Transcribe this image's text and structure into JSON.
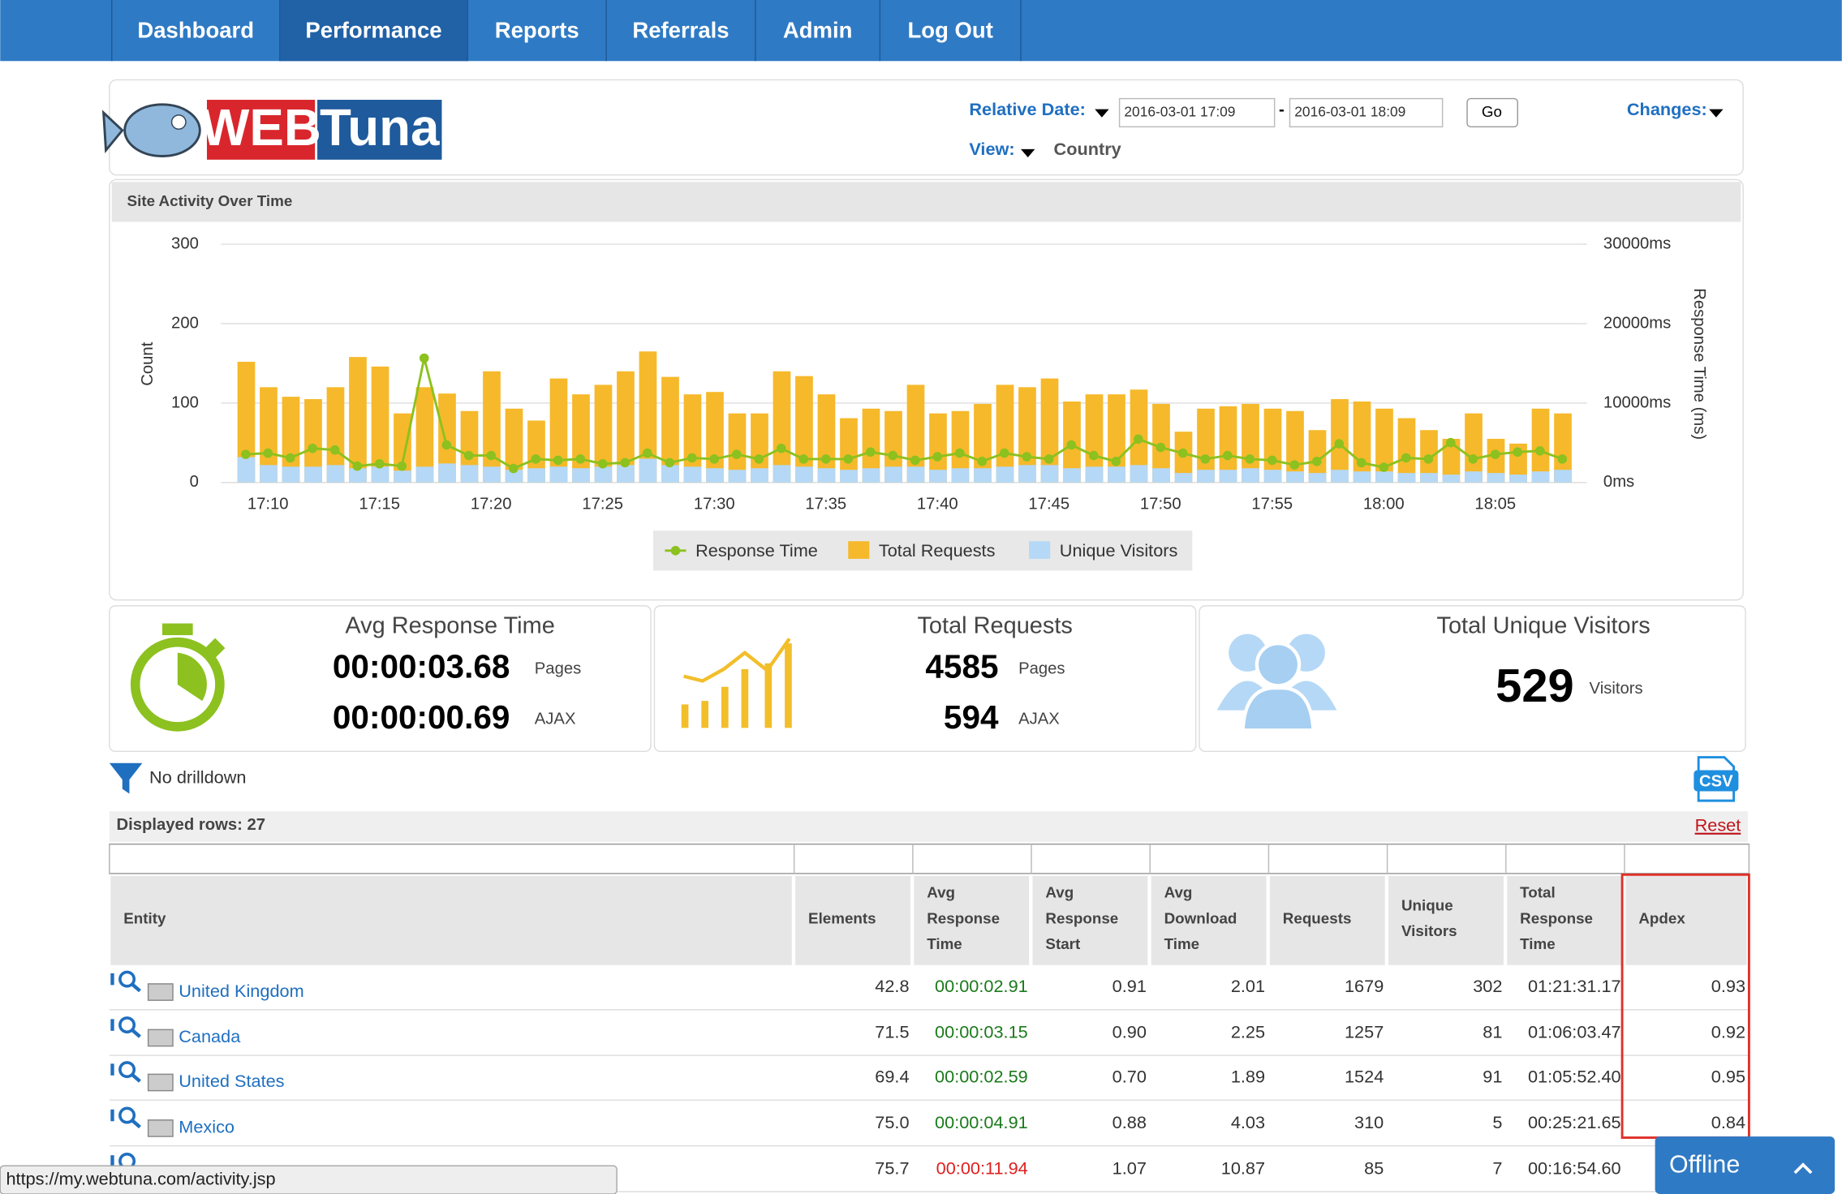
{
  "nav": [
    "Dashboard",
    "Performance",
    "Reports",
    "Referrals",
    "Admin",
    "Log Out"
  ],
  "logo": {
    "web": "WEB",
    "tuna": "Tuna"
  },
  "controls": {
    "relative_date": "Relative Date:",
    "date_from": "2016-03-01 17:09",
    "separator": "-",
    "date_to": "2016-03-01 18:09",
    "go": "Go",
    "changes": "Changes:",
    "view": "View:",
    "view_value": "Country"
  },
  "chart_data": {
    "type": "bar",
    "title": "Site Activity Over Time",
    "y_label": "Count",
    "y2_label": "Response Time (ms)",
    "categories": [
      null,
      "17:10",
      null,
      null,
      null,
      null,
      "17:15",
      null,
      null,
      null,
      null,
      "17:20",
      null,
      null,
      null,
      null,
      "17:25",
      null,
      null,
      null,
      null,
      "17:30",
      null,
      null,
      null,
      null,
      "17:35",
      null,
      null,
      null,
      null,
      "17:40",
      null,
      null,
      null,
      null,
      "17:45",
      null,
      null,
      null,
      null,
      "17:50",
      null,
      null,
      null,
      null,
      "17:55",
      null,
      null,
      null,
      null,
      "18:00",
      null,
      null,
      null,
      null,
      "18:05",
      null,
      null,
      null
    ],
    "series": [
      {
        "name": "Response Time",
        "type": "line",
        "axis": "y2",
        "color": "#8cc11f",
        "values": [
          3550,
          3700,
          3100,
          4300,
          4100,
          2070,
          2360,
          2070,
          15660,
          4730,
          3400,
          3400,
          1770,
          2960,
          2800,
          2960,
          2360,
          2500,
          3700,
          2500,
          3100,
          2960,
          3550,
          2960,
          4300,
          2960,
          2960,
          2960,
          3840,
          3400,
          2800,
          3250,
          3700,
          2660,
          3700,
          3250,
          2960,
          4730,
          3400,
          2660,
          5470,
          4430,
          3700,
          2960,
          3400,
          2960,
          2800,
          2220,
          2660,
          4880,
          2500,
          1920,
          3100,
          2960,
          5020,
          2960,
          3550,
          3840,
          3990,
          2960
        ]
      },
      {
        "name": "Total Requests",
        "type": "bar",
        "color": "#f6b92b",
        "values": [
          152,
          120,
          108,
          105,
          120,
          158,
          146,
          87,
          120,
          112,
          90,
          140,
          93,
          78,
          131,
          111,
          123,
          140,
          165,
          133,
          111,
          114,
          87,
          87,
          140,
          134,
          111,
          81,
          93,
          90,
          123,
          87,
          90,
          99,
          123,
          120,
          131,
          102,
          111,
          111,
          117,
          99,
          64,
          93,
          96,
          99,
          93,
          90,
          66,
          105,
          102,
          93,
          81,
          66,
          55,
          87,
          55,
          49,
          93,
          87
        ]
      },
      {
        "name": "Unique Visitors",
        "type": "bar",
        "color": "#b5d8f6",
        "values": [
          32,
          22,
          20,
          20,
          22,
          18,
          20,
          15,
          20,
          24,
          22,
          20,
          16,
          18,
          20,
          18,
          20,
          22,
          30,
          22,
          20,
          18,
          16,
          18,
          22,
          20,
          18,
          16,
          18,
          20,
          20,
          16,
          18,
          18,
          20,
          22,
          22,
          18,
          20,
          20,
          22,
          18,
          12,
          16,
          16,
          18,
          16,
          14,
          12,
          16,
          14,
          14,
          12,
          12,
          10,
          14,
          12,
          10,
          14,
          16
        ]
      }
    ],
    "ylim": [
      0,
      300
    ],
    "yticks": [
      0,
      100,
      200,
      300
    ],
    "y2lim": [
      0,
      30000
    ],
    "y2ticks": [
      {
        "value": 0,
        "label": "0ms"
      },
      {
        "value": 10000,
        "label": "10000ms"
      },
      {
        "value": 20000,
        "label": "20000ms"
      },
      {
        "value": 30000,
        "label": "30000ms"
      }
    ],
    "grid": true,
    "legend": "bottom"
  },
  "stats": [
    {
      "title": "Avg Response Time",
      "rows": [
        {
          "value": "00:00:03.68",
          "unit": "Pages"
        },
        {
          "value": "00:00:00.69",
          "unit": "AJAX"
        }
      ]
    },
    {
      "title": "Total Requests",
      "rows": [
        {
          "value": "4585",
          "unit": "Pages"
        },
        {
          "value": "594",
          "unit": "AJAX"
        }
      ]
    },
    {
      "title": "Total Unique Visitors",
      "rows": [
        {
          "value": "529",
          "unit": "Visitors"
        }
      ]
    }
  ],
  "drilldown": "No drilldown",
  "table": {
    "displayed_rows": "Displayed rows: 27",
    "reset": "Reset",
    "csv": "CSV",
    "headers": [
      [
        "Entity"
      ],
      [
        "Elements"
      ],
      [
        "Avg",
        "Response",
        "Time"
      ],
      [
        "Avg",
        "Response",
        "Start"
      ],
      [
        "Avg",
        "Download",
        "Time"
      ],
      [
        "Requests"
      ],
      [
        "Unique",
        "Visitors"
      ],
      [
        "Total",
        "Response",
        "Time"
      ],
      [
        "Apdex"
      ]
    ],
    "rows": [
      [
        "United Kingdom",
        "42.8",
        "00:00:02.91",
        "0.91",
        "2.01",
        "1679",
        "302",
        "01:21:31.17",
        "0.93"
      ],
      [
        "Canada",
        "71.5",
        "00:00:03.15",
        "0.90",
        "2.25",
        "1257",
        "81",
        "01:06:03.47",
        "0.92"
      ],
      [
        "United States",
        "69.4",
        "00:00:02.59",
        "0.70",
        "1.89",
        "1524",
        "91",
        "01:05:52.40",
        "0.95"
      ],
      [
        "Mexico",
        "75.0",
        "00:00:04.91",
        "0.88",
        "4.03",
        "310",
        "5",
        "00:25:21.65",
        "0.84"
      ],
      [
        null,
        "75.7",
        "00:00:11.94",
        "1.07",
        "10.87",
        "85",
        "7",
        "00:16:54.60",
        null
      ]
    ],
    "response_time_colors": [
      "#1a7a1a",
      "#1a7a1a",
      "#1a7a1a",
      "#1a7a1a",
      "#e02020"
    ]
  },
  "status_url": "https://my.webtuna.com/activity.jsp",
  "offline": "Offline"
}
